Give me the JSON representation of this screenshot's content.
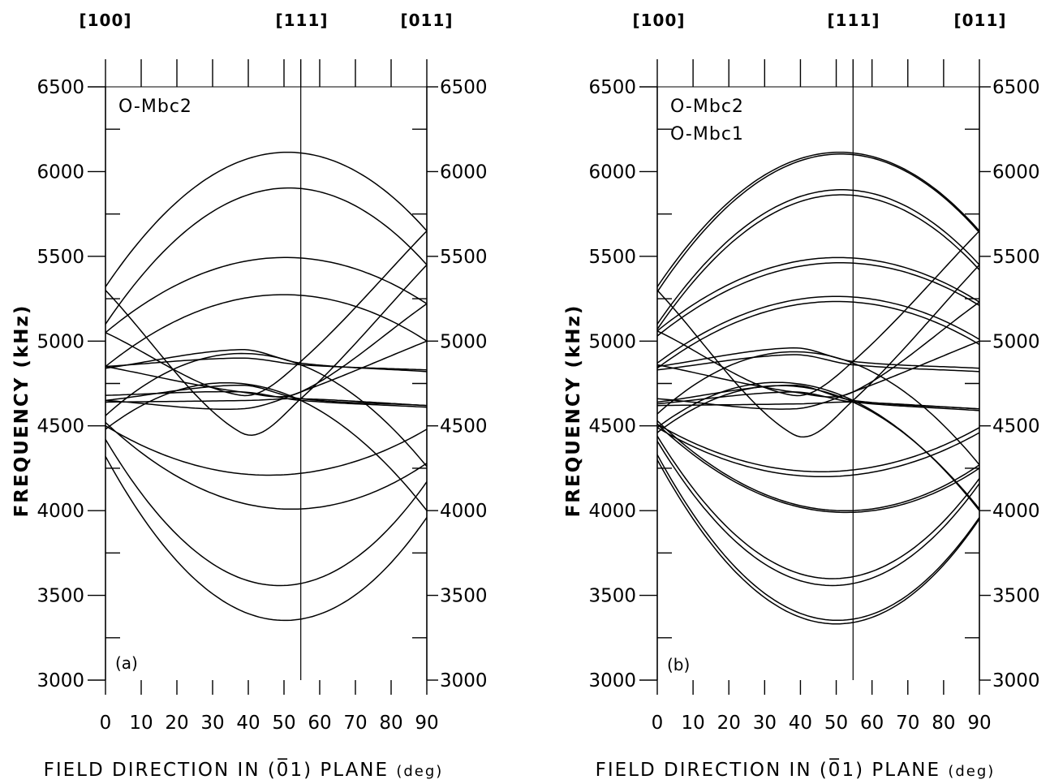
{
  "figure": {
    "top_labels": [
      "[100]",
      "[111]",
      "[011]"
    ],
    "xlabel": "FIELD DIRECTION IN (0̅1) PLANE",
    "xlabel_unit": "(deg)",
    "ylabel": "FREQUENCY (kHz)"
  },
  "chart_data": [
    {
      "type": "line",
      "panel_label": "(a)",
      "title_lines": [
        "O-Mbc2"
      ],
      "xlabel": "FIELD DIRECTION IN (0̅1) PLANE (deg)",
      "ylabel": "FREQUENCY (kHz)",
      "xlim": [
        0,
        90
      ],
      "ylim": [
        3000,
        6500
      ],
      "xticks": [
        0,
        10,
        20,
        30,
        40,
        50,
        60,
        70,
        80,
        90
      ],
      "yticks": [
        3000,
        3500,
        4000,
        4500,
        5000,
        5500,
        6000,
        6500
      ],
      "top_axis": [
        {
          "label": "[100]",
          "x": 0
        },
        {
          "label": "[111]",
          "x": 54.7
        },
        {
          "label": "[011]",
          "x": 90
        }
      ],
      "vline_x": 54.7,
      "series": [
        {
          "x": [
            0,
            54.7,
            90
          ],
          "y": [
            5320,
            6110,
            5650
          ]
        },
        {
          "x": [
            0,
            54.7,
            90
          ],
          "y": [
            5100,
            5900,
            5450
          ]
        },
        {
          "x": [
            0,
            54.7,
            90
          ],
          "y": [
            5050,
            5490,
            5220
          ]
        },
        {
          "x": [
            0,
            54.7,
            90
          ],
          "y": [
            4850,
            5270,
            5000
          ]
        },
        {
          "x": [
            0,
            38,
            54.7,
            90
          ],
          "y": [
            4840,
            4950,
            4870,
            4820
          ]
        },
        {
          "x": [
            0,
            38,
            54.7,
            90
          ],
          "y": [
            4850,
            4900,
            4860,
            4830
          ]
        },
        {
          "x": [
            0,
            38,
            54.7,
            90
          ],
          "y": [
            4650,
            4740,
            4660,
            4620
          ]
        },
        {
          "x": [
            0,
            38,
            54.7,
            90
          ],
          "y": [
            4680,
            4700,
            4650,
            4610
          ]
        },
        {
          "x": [
            0,
            40,
            54.7,
            90
          ],
          "y": [
            4640,
            4650,
            4660,
            4620
          ]
        },
        {
          "x": [
            0,
            54.7,
            90
          ],
          "y": [
            4500,
            4220,
            4480
          ]
        },
        {
          "x": [
            0,
            54.7,
            90
          ],
          "y": [
            4520,
            4010,
            4280
          ]
        },
        {
          "x": [
            0,
            54.7,
            90
          ],
          "y": [
            4420,
            3570,
            4170
          ]
        },
        {
          "x": [
            0,
            54.7,
            90
          ],
          "y": [
            4320,
            3360,
            3960
          ]
        },
        {
          "x": [
            0,
            38,
            54.7,
            90
          ],
          "y": [
            5300,
            4460,
            4660,
            5450
          ]
        },
        {
          "x": [
            0,
            38,
            54.7,
            90
          ],
          "y": [
            5050,
            4680,
            4880,
            5650
          ]
        },
        {
          "x": [
            0,
            38,
            54.7,
            90
          ],
          "y": [
            4850,
            4700,
            4700,
            5220
          ]
        },
        {
          "x": [
            0,
            38,
            54.7,
            90
          ],
          "y": [
            4650,
            4600,
            4700,
            5000
          ]
        },
        {
          "x": [
            0,
            54.7,
            90
          ],
          "y": [
            4560,
            4860,
            4260
          ]
        },
        {
          "x": [
            0,
            54.7,
            90
          ],
          "y": [
            4480,
            4650,
            4000
          ]
        }
      ]
    },
    {
      "type": "line",
      "panel_label": "(b)",
      "title_lines": [
        "O-Mbc2",
        "O-Mbc1"
      ],
      "xlabel": "FIELD DIRECTION IN (0̅1) PLANE (deg)",
      "ylabel": "FREQUENCY (kHz)",
      "xlim": [
        0,
        90
      ],
      "ylim": [
        3000,
        6500
      ],
      "xticks": [
        0,
        10,
        20,
        30,
        40,
        50,
        60,
        70,
        80,
        90
      ],
      "yticks": [
        3000,
        3500,
        4000,
        4500,
        5000,
        5500,
        6000,
        6500
      ],
      "top_axis": [
        {
          "label": "[100]",
          "x": 0
        },
        {
          "label": "[111]",
          "x": 54.7
        },
        {
          "label": "[011]",
          "x": 90
        }
      ],
      "vline_x": 54.7,
      "series": [
        {
          "x": [
            0,
            54.7,
            90
          ],
          "y": [
            5320,
            6110,
            5650
          ]
        },
        {
          "x": [
            0,
            54.7,
            90
          ],
          "y": [
            5290,
            6100,
            5640
          ]
        },
        {
          "x": [
            0,
            54.7,
            90
          ],
          "y": [
            5100,
            5890,
            5450
          ]
        },
        {
          "x": [
            0,
            54.7,
            90
          ],
          "y": [
            5070,
            5860,
            5420
          ]
        },
        {
          "x": [
            0,
            54.7,
            90
          ],
          "y": [
            5060,
            5490,
            5230
          ]
        },
        {
          "x": [
            0,
            54.7,
            90
          ],
          "y": [
            5030,
            5460,
            5210
          ]
        },
        {
          "x": [
            0,
            54.7,
            90
          ],
          "y": [
            4870,
            5260,
            5010
          ]
        },
        {
          "x": [
            0,
            54.7,
            90
          ],
          "y": [
            4840,
            5230,
            4980
          ]
        },
        {
          "x": [
            0,
            38,
            54.7,
            90
          ],
          "y": [
            4850,
            4960,
            4880,
            4840
          ]
        },
        {
          "x": [
            0,
            38,
            54.7,
            90
          ],
          "y": [
            4830,
            4920,
            4860,
            4820
          ]
        },
        {
          "x": [
            0,
            38,
            54.7,
            90
          ],
          "y": [
            4640,
            4740,
            4650,
            4600
          ]
        },
        {
          "x": [
            0,
            38,
            54.7,
            90
          ],
          "y": [
            4630,
            4700,
            4640,
            4590
          ]
        },
        {
          "x": [
            0,
            40,
            54.7,
            90
          ],
          "y": [
            4620,
            4630,
            4640,
            4600
          ]
        },
        {
          "x": [
            0,
            54.7,
            90
          ],
          "y": [
            4510,
            4240,
            4490
          ]
        },
        {
          "x": [
            0,
            54.7,
            90
          ],
          "y": [
            4490,
            4210,
            4460
          ]
        },
        {
          "x": [
            0,
            54.7,
            90
          ],
          "y": [
            4530,
            4000,
            4270
          ]
        },
        {
          "x": [
            0,
            54.7,
            90
          ],
          "y": [
            4510,
            3990,
            4250
          ]
        },
        {
          "x": [
            0,
            54.7,
            90
          ],
          "y": [
            4440,
            3610,
            4190
          ]
        },
        {
          "x": [
            0,
            54.7,
            90
          ],
          "y": [
            4410,
            3570,
            4160
          ]
        },
        {
          "x": [
            0,
            54.7,
            90
          ],
          "y": [
            4330,
            3360,
            3960
          ]
        },
        {
          "x": [
            0,
            54.7,
            90
          ],
          "y": [
            4300,
            3340,
            3950
          ]
        },
        {
          "x": [
            0,
            38,
            54.7,
            90
          ],
          "y": [
            5300,
            4450,
            4650,
            5450
          ]
        },
        {
          "x": [
            0,
            38,
            54.7,
            90
          ],
          "y": [
            5060,
            4680,
            4880,
            5650
          ]
        },
        {
          "x": [
            0,
            38,
            54.7,
            90
          ],
          "y": [
            4860,
            4700,
            4700,
            5230
          ]
        },
        {
          "x": [
            0,
            38,
            54.7,
            90
          ],
          "y": [
            4660,
            4600,
            4700,
            5000
          ]
        },
        {
          "x": [
            0,
            54.7,
            90
          ],
          "y": [
            4570,
            4870,
            4270
          ]
        },
        {
          "x": [
            0,
            54.7,
            90
          ],
          "y": [
            4490,
            4650,
            4000
          ]
        },
        {
          "x": [
            0,
            54.7,
            90
          ],
          "y": [
            4460,
            4640,
            4010
          ]
        }
      ]
    }
  ]
}
